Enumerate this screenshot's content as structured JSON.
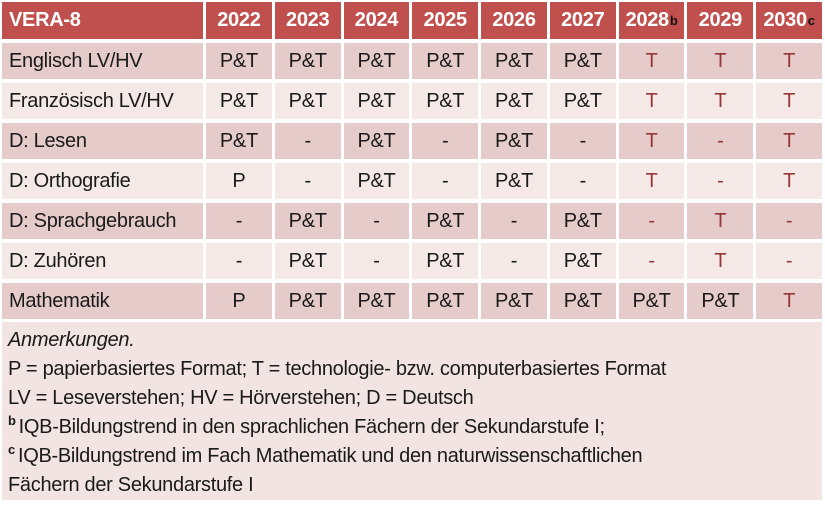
{
  "colors": {
    "header_bg": "#C0504D",
    "header_text": "#FFFFFF",
    "row_odd_bg": "#E5CCCA",
    "row_even_bg": "#F4E9E7",
    "notes_bg": "#F1E4E2",
    "text": "#1A1A1A",
    "accent_text": "#953735",
    "grid_line": "#FFFFFF"
  },
  "table": {
    "title": "VERA-8",
    "columns": [
      {
        "label": "2022"
      },
      {
        "label": "2023"
      },
      {
        "label": "2024"
      },
      {
        "label": "2025"
      },
      {
        "label": "2026"
      },
      {
        "label": "2027"
      },
      {
        "label": "2028",
        "sup": "b"
      },
      {
        "label": "2029"
      },
      {
        "label": "2030",
        "sup": "c"
      }
    ],
    "rows": [
      {
        "label": "Englisch LV/HV",
        "cells": [
          {
            "text": "P&T"
          },
          {
            "text": "P&T"
          },
          {
            "text": "P&T"
          },
          {
            "text": "P&T"
          },
          {
            "text": "P&T"
          },
          {
            "text": "P&T"
          },
          {
            "text": "T",
            "accent": true
          },
          {
            "text": "T",
            "accent": true
          },
          {
            "text": "T",
            "accent": true
          }
        ]
      },
      {
        "label": "Französisch LV/HV",
        "cells": [
          {
            "text": "P&T"
          },
          {
            "text": "P&T"
          },
          {
            "text": "P&T"
          },
          {
            "text": "P&T"
          },
          {
            "text": "P&T"
          },
          {
            "text": "P&T"
          },
          {
            "text": "T",
            "accent": true
          },
          {
            "text": "T",
            "accent": true
          },
          {
            "text": "T",
            "accent": true
          }
        ]
      },
      {
        "label": "D: Lesen",
        "cells": [
          {
            "text": "P&T"
          },
          {
            "text": "-"
          },
          {
            "text": "P&T"
          },
          {
            "text": "-"
          },
          {
            "text": "P&T"
          },
          {
            "text": "-"
          },
          {
            "text": "T",
            "accent": true
          },
          {
            "text": "-",
            "accent": true
          },
          {
            "text": "T",
            "accent": true
          }
        ]
      },
      {
        "label": "D: Orthografie",
        "cells": [
          {
            "text": "P"
          },
          {
            "text": "-"
          },
          {
            "text": "P&T"
          },
          {
            "text": "-"
          },
          {
            "text": "P&T"
          },
          {
            "text": "-"
          },
          {
            "text": "T",
            "accent": true
          },
          {
            "text": "-",
            "accent": true
          },
          {
            "text": "T",
            "accent": true
          }
        ]
      },
      {
        "label": "D: Sprachgebrauch",
        "cells": [
          {
            "text": "-"
          },
          {
            "text": "P&T"
          },
          {
            "text": "-"
          },
          {
            "text": "P&T"
          },
          {
            "text": "-"
          },
          {
            "text": "P&T"
          },
          {
            "text": "-",
            "accent": true
          },
          {
            "text": "T",
            "accent": true
          },
          {
            "text": "-",
            "accent": true
          }
        ]
      },
      {
        "label": "D: Zuhören",
        "cells": [
          {
            "text": "-"
          },
          {
            "text": "P&T"
          },
          {
            "text": "-"
          },
          {
            "text": "P&T"
          },
          {
            "text": "-"
          },
          {
            "text": "P&T"
          },
          {
            "text": "-",
            "accent": true
          },
          {
            "text": "T",
            "accent": true
          },
          {
            "text": "-",
            "accent": true
          }
        ]
      },
      {
        "label": "Mathematik",
        "cells": [
          {
            "text": "P"
          },
          {
            "text": "P&T"
          },
          {
            "text": "P&T"
          },
          {
            "text": "P&T"
          },
          {
            "text": "P&T"
          },
          {
            "text": "P&T"
          },
          {
            "text": "P&T"
          },
          {
            "text": "P&T"
          },
          {
            "text": "T",
            "accent": true
          }
        ]
      }
    ]
  },
  "notes": {
    "title": "Anmerkungen.",
    "lines": [
      {
        "text": "P = papierbasiertes Format; T = technologie- bzw. computerbasiertes Format"
      },
      {
        "text": "LV = Leseverstehen; HV = Hörverstehen; D = Deutsch"
      },
      {
        "sup": "b",
        "text": "IQB-Bildungstrend in den sprachlichen Fächern der Sekundarstufe I;"
      },
      {
        "sup": "c",
        "text": "IQB-Bildungstrend im Fach Mathematik und den naturwissenschaftlichen"
      },
      {
        "text": "Fächern der Sekundarstufe I"
      }
    ]
  }
}
